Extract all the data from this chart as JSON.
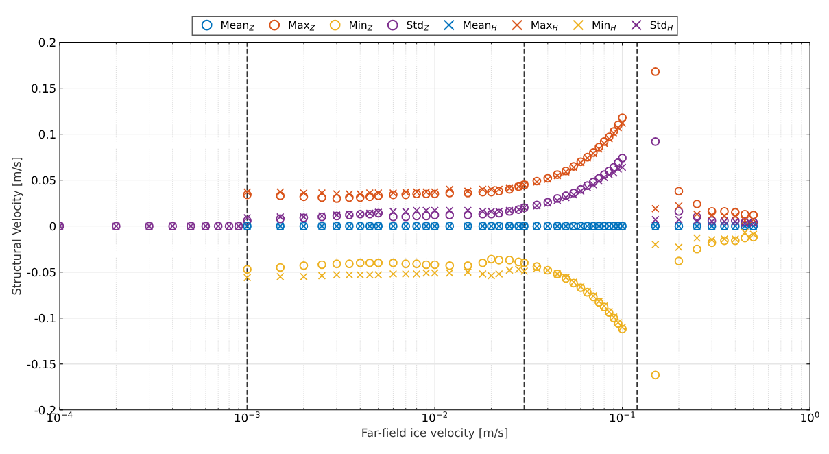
{
  "chart_data": {
    "type": "scatter",
    "xlabel": "Far-field ice velocity [m/s]",
    "ylabel": "Structural Velocity [m/s]",
    "log": "x",
    "grid": true,
    "legend": "top",
    "xlim": [
      0.0001,
      1
    ],
    "ylim": [
      -0.2,
      0.2
    ],
    "xticks": [
      {
        "value": 0.0001,
        "label": "10$^{−4}$"
      },
      {
        "value": 0.001,
        "label": "10$^{−3}$"
      },
      {
        "value": 0.01,
        "label": "10$^{−2}$"
      },
      {
        "value": 0.1,
        "label": "10$^{−1}$"
      },
      {
        "value": 1,
        "label": "10$^{0}$"
      }
    ],
    "yticks": [
      -0.2,
      -0.15,
      -0.1,
      -0.05,
      0,
      0.05,
      0.1,
      0.15,
      0.2
    ],
    "ref_lines": [
      {
        "axis": "x",
        "value": 0.001,
        "color": "#333333",
        "line_style": "dashed"
      },
      {
        "axis": "x",
        "value": 0.03,
        "color": "#333333",
        "line_style": "dashed"
      },
      {
        "axis": "x",
        "value": 0.12,
        "color": "#333333",
        "line_style": "dashed"
      }
    ],
    "x": [
      0.0001,
      0.0002,
      0.0003,
      0.0004,
      0.0005,
      0.0006,
      0.0007,
      0.0008,
      0.0009,
      0.001,
      0.0015,
      0.002,
      0.0025,
      0.003,
      0.0035,
      0.004,
      0.0045,
      0.005,
      0.006,
      0.007,
      0.008,
      0.009,
      0.01,
      0.012,
      0.015,
      0.018,
      0.02,
      0.022,
      0.025,
      0.028,
      0.03,
      0.035,
      0.04,
      0.045,
      0.05,
      0.055,
      0.06,
      0.065,
      0.07,
      0.075,
      0.08,
      0.085,
      0.09,
      0.095,
      0.1,
      0.15,
      0.2,
      0.25,
      0.3,
      0.35,
      0.4,
      0.45,
      0.5
    ],
    "series": [
      {
        "name": "Mean$_{Z}$",
        "color": "#0072bd",
        "marker": "circle",
        "values": [
          null,
          null,
          null,
          null,
          null,
          null,
          null,
          null,
          null,
          0,
          0,
          0,
          0,
          0,
          0,
          0,
          0,
          0,
          0,
          0,
          0,
          0,
          0,
          0,
          0,
          0,
          0,
          0,
          0,
          0,
          0,
          0,
          0,
          0,
          0,
          0,
          0,
          0,
          0,
          0,
          0,
          0,
          0,
          0,
          0,
          0,
          0,
          0,
          0,
          0,
          0,
          0,
          0
        ]
      },
      {
        "name": "Max$_{Z}$",
        "color": "#d95319",
        "marker": "circle",
        "values": [
          null,
          null,
          null,
          null,
          null,
          null,
          null,
          null,
          null,
          0.034,
          0.033,
          0.032,
          0.031,
          0.03,
          0.031,
          0.031,
          0.032,
          0.033,
          0.034,
          0.034,
          0.035,
          0.035,
          0.035,
          0.036,
          0.036,
          0.037,
          0.037,
          0.038,
          0.04,
          0.043,
          0.045,
          0.049,
          0.052,
          0.056,
          0.06,
          0.065,
          0.07,
          0.075,
          0.08,
          0.086,
          0.092,
          0.097,
          0.103,
          0.11,
          0.118,
          0.168,
          0.038,
          0.024,
          0.016,
          0.016,
          0.015,
          0.013,
          0.012
        ]
      },
      {
        "name": "Min$_{Z}$",
        "color": "#edb120",
        "marker": "circle",
        "values": [
          null,
          null,
          null,
          null,
          null,
          null,
          null,
          null,
          null,
          -0.047,
          -0.045,
          -0.043,
          -0.042,
          -0.041,
          -0.041,
          -0.04,
          -0.04,
          -0.04,
          -0.04,
          -0.041,
          -0.041,
          -0.042,
          -0.042,
          -0.043,
          -0.043,
          -0.04,
          -0.036,
          -0.037,
          -0.037,
          -0.039,
          -0.04,
          -0.044,
          -0.048,
          -0.052,
          -0.057,
          -0.062,
          -0.067,
          -0.072,
          -0.077,
          -0.083,
          -0.088,
          -0.094,
          -0.1,
          -0.106,
          -0.112,
          -0.162,
          -0.038,
          -0.025,
          -0.018,
          -0.016,
          -0.016,
          -0.013,
          -0.012
        ]
      },
      {
        "name": "Std$_{Z}$",
        "color": "#7e2f8e",
        "marker": "circle",
        "values": [
          0,
          0,
          0,
          0,
          0,
          0,
          0,
          0,
          0,
          0.006,
          0.008,
          0.009,
          0.01,
          0.011,
          0.012,
          0.013,
          0.013,
          0.014,
          0.01,
          0.01,
          0.011,
          0.011,
          0.012,
          0.012,
          0.012,
          0.013,
          0.013,
          0.014,
          0.016,
          0.018,
          0.02,
          0.023,
          0.026,
          0.03,
          0.033,
          0.036,
          0.04,
          0.044,
          0.048,
          0.052,
          0.056,
          0.06,
          0.064,
          0.069,
          0.074,
          0.092,
          0.016,
          0.01,
          0.006,
          0.006,
          0.006,
          0.004,
          0.004
        ]
      },
      {
        "name": "Mean$_{H}$",
        "color": "#0072bd",
        "marker": "cross",
        "values": [
          null,
          null,
          null,
          null,
          null,
          null,
          null,
          null,
          null,
          0,
          0,
          0,
          0,
          0,
          0,
          0,
          0,
          0,
          0,
          0,
          0,
          0,
          0,
          0,
          0,
          0,
          0,
          0,
          0,
          0,
          0,
          0,
          0,
          0,
          0,
          0,
          0,
          0,
          0,
          0,
          0,
          0,
          0,
          0,
          0,
          0,
          0,
          0,
          0,
          0,
          0,
          0,
          0
        ]
      },
      {
        "name": "Max$_{H}$",
        "color": "#d95319",
        "marker": "cross",
        "values": [
          null,
          null,
          null,
          null,
          null,
          null,
          null,
          null,
          null,
          0.037,
          0.037,
          0.036,
          0.036,
          0.035,
          0.035,
          0.035,
          0.036,
          0.036,
          0.036,
          0.037,
          0.037,
          0.037,
          0.037,
          0.04,
          0.038,
          0.04,
          0.04,
          0.04,
          0.041,
          0.043,
          0.045,
          0.048,
          0.051,
          0.055,
          0.059,
          0.064,
          0.069,
          0.074,
          0.079,
          0.084,
          0.09,
          0.095,
          0.101,
          0.107,
          0.112,
          0.019,
          0.022,
          0.013,
          0.012,
          0.011,
          0.011,
          0.006,
          0.007
        ]
      },
      {
        "name": "Min$_{H}$",
        "color": "#edb120",
        "marker": "cross",
        "values": [
          null,
          null,
          null,
          null,
          null,
          null,
          null,
          null,
          null,
          -0.056,
          -0.055,
          -0.055,
          -0.054,
          -0.053,
          -0.053,
          -0.053,
          -0.053,
          -0.053,
          -0.052,
          -0.052,
          -0.052,
          -0.051,
          -0.051,
          -0.051,
          -0.05,
          -0.052,
          -0.054,
          -0.052,
          -0.048,
          -0.047,
          -0.049,
          -0.046,
          -0.048,
          -0.052,
          -0.056,
          -0.061,
          -0.066,
          -0.071,
          -0.076,
          -0.082,
          -0.087,
          -0.093,
          -0.099,
          -0.105,
          -0.11,
          -0.02,
          -0.023,
          -0.013,
          -0.015,
          -0.014,
          -0.014,
          -0.007,
          -0.009
        ]
      },
      {
        "name": "Std$_{H}$",
        "color": "#7e2f8e",
        "marker": "cross",
        "values": [
          0,
          0,
          0,
          0,
          0,
          0,
          0,
          0,
          0,
          0.009,
          0.01,
          0.01,
          0.011,
          0.012,
          0.013,
          0.013,
          0.014,
          0.015,
          0.016,
          0.016,
          0.017,
          0.017,
          0.017,
          0.017,
          0.017,
          0.016,
          0.016,
          0.016,
          0.017,
          0.018,
          0.02,
          0.022,
          0.025,
          0.028,
          0.031,
          0.034,
          0.038,
          0.042,
          0.045,
          0.049,
          0.053,
          0.056,
          0.058,
          0.062,
          0.064,
          0.007,
          0.007,
          0.006,
          0.005,
          0.005,
          0.005,
          0.003,
          0.003
        ]
      }
    ]
  }
}
